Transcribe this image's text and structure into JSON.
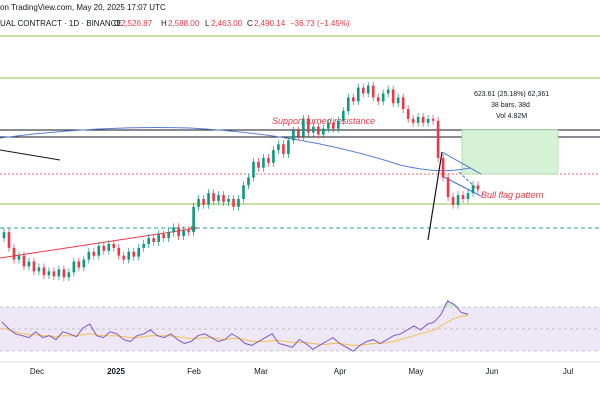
{
  "header": {
    "published_line": "on TradingView.com, May 20, 2025 17:07 UTC",
    "symbol_line": "UAL CONTRACT · 1D · BINANCE",
    "ohlc": {
      "o_label": "O",
      "o_value": "2,526.87",
      "h_label": "H",
      "h_value": "2,588.00",
      "l_label": "L",
      "l_value": "2,463.00",
      "c_label": "C",
      "c_value": "2,490.14",
      "change": "−36.73 (−1.45%)"
    }
  },
  "annotations": {
    "support_resistance": "Support turned resistance",
    "bull_flag": "Bull flag pattern"
  },
  "measure_box": {
    "line1": "623.61 (25.18%) 62,361",
    "line2": "38 bars, 38d",
    "line3": "Vol 4.82M"
  },
  "colors": {
    "up": "#089981",
    "down": "#f23645",
    "ma": "#5b7fd6",
    "rsi": "#7e57c2",
    "rsi_ma": "#f5c04a",
    "rsi_band_fill": "#ede7f6",
    "channel_line": "#8bc34a",
    "teal_dashed": "#26a69a",
    "target_fill": "#d6f2d6",
    "flag_blue": "#3f6fd1"
  },
  "chart_data": [
    {
      "type": "candlestick",
      "series_color_up": "#089981",
      "series_color_down": "#f23645",
      "x_tick_labels": [
        "Dec",
        "2025",
        "Feb",
        "Mar",
        "Apr",
        "May",
        "Jun",
        "Jul"
      ],
      "candles": [
        {
          "o": 118,
          "c": 124
        },
        {
          "o": 124,
          "c": 108
        },
        {
          "o": 108,
          "c": 96
        },
        {
          "o": 96,
          "c": 100
        },
        {
          "o": 100,
          "c": 89
        },
        {
          "o": 89,
          "c": 94
        },
        {
          "o": 94,
          "c": 84
        },
        {
          "o": 84,
          "c": 88
        },
        {
          "o": 88,
          "c": 80
        },
        {
          "o": 80,
          "c": 84
        },
        {
          "o": 84,
          "c": 79
        },
        {
          "o": 79,
          "c": 86
        },
        {
          "o": 86,
          "c": 78
        },
        {
          "o": 78,
          "c": 83
        },
        {
          "o": 83,
          "c": 94
        },
        {
          "o": 94,
          "c": 88
        },
        {
          "o": 88,
          "c": 96
        },
        {
          "o": 96,
          "c": 104
        },
        {
          "o": 104,
          "c": 100
        },
        {
          "o": 100,
          "c": 110
        },
        {
          "o": 110,
          "c": 105
        },
        {
          "o": 105,
          "c": 112
        },
        {
          "o": 112,
          "c": 108
        },
        {
          "o": 108,
          "c": 100
        },
        {
          "o": 100,
          "c": 96
        },
        {
          "o": 96,
          "c": 104
        },
        {
          "o": 104,
          "c": 99
        },
        {
          "o": 99,
          "c": 108
        },
        {
          "o": 108,
          "c": 112
        },
        {
          "o": 112,
          "c": 118
        },
        {
          "o": 118,
          "c": 114
        },
        {
          "o": 114,
          "c": 122
        },
        {
          "o": 122,
          "c": 118
        },
        {
          "o": 118,
          "c": 124
        },
        {
          "o": 124,
          "c": 129
        },
        {
          "o": 129,
          "c": 120
        },
        {
          "o": 120,
          "c": 126
        },
        {
          "o": 126,
          "c": 124
        },
        {
          "o": 124,
          "c": 150
        },
        {
          "o": 150,
          "c": 158
        },
        {
          "o": 158,
          "c": 152
        },
        {
          "o": 152,
          "c": 164
        },
        {
          "o": 164,
          "c": 156
        },
        {
          "o": 156,
          "c": 162
        },
        {
          "o": 162,
          "c": 155
        },
        {
          "o": 155,
          "c": 158
        },
        {
          "o": 158,
          "c": 150
        },
        {
          "o": 150,
          "c": 158
        },
        {
          "o": 158,
          "c": 172
        },
        {
          "o": 172,
          "c": 180
        },
        {
          "o": 180,
          "c": 196
        },
        {
          "o": 196,
          "c": 190
        },
        {
          "o": 190,
          "c": 200
        },
        {
          "o": 200,
          "c": 195
        },
        {
          "o": 195,
          "c": 208
        },
        {
          "o": 208,
          "c": 214
        },
        {
          "o": 214,
          "c": 204
        },
        {
          "o": 204,
          "c": 218
        },
        {
          "o": 218,
          "c": 228
        },
        {
          "o": 228,
          "c": 222
        },
        {
          "o": 222,
          "c": 240
        },
        {
          "o": 240,
          "c": 226
        },
        {
          "o": 226,
          "c": 232
        },
        {
          "o": 232,
          "c": 224
        },
        {
          "o": 224,
          "c": 230
        },
        {
          "o": 230,
          "c": 236
        },
        {
          "o": 236,
          "c": 230
        },
        {
          "o": 230,
          "c": 238
        },
        {
          "o": 238,
          "c": 248
        },
        {
          "o": 248,
          "c": 262
        },
        {
          "o": 262,
          "c": 258
        },
        {
          "o": 258,
          "c": 272
        },
        {
          "o": 272,
          "c": 266
        },
        {
          "o": 266,
          "c": 274
        },
        {
          "o": 274,
          "c": 262
        },
        {
          "o": 262,
          "c": 258
        },
        {
          "o": 258,
          "c": 266
        },
        {
          "o": 266,
          "c": 270
        },
        {
          "o": 270,
          "c": 256
        },
        {
          "o": 256,
          "c": 262
        },
        {
          "o": 262,
          "c": 250
        },
        {
          "o": 250,
          "c": 240
        },
        {
          "o": 240,
          "c": 236
        },
        {
          "o": 236,
          "c": 242
        },
        {
          "o": 242,
          "c": 236
        },
        {
          "o": 236,
          "c": 240
        },
        {
          "o": 240,
          "c": 238
        },
        {
          "o": 238,
          "c": 200
        },
        {
          "o": 200,
          "c": 180
        },
        {
          "o": 180,
          "c": 160
        },
        {
          "o": 160,
          "c": 152
        },
        {
          "o": 152,
          "c": 162
        },
        {
          "o": 162,
          "c": 158
        },
        {
          "o": 158,
          "c": 164
        },
        {
          "o": 164,
          "c": 172
        },
        {
          "o": 172,
          "c": 168
        }
      ],
      "rsi": [
        62,
        55,
        50,
        48,
        46,
        52,
        46,
        48,
        44,
        52,
        50,
        47,
        56,
        60,
        48,
        46,
        52,
        50,
        44,
        42,
        48,
        50,
        54,
        48,
        46,
        50,
        44,
        40,
        42,
        48,
        50,
        46,
        42,
        44,
        50,
        46,
        40,
        38,
        42,
        46,
        50,
        40,
        38,
        36,
        44,
        40,
        34,
        38,
        42,
        46,
        40,
        36,
        32,
        38,
        42,
        44,
        40,
        44,
        48,
        50,
        54,
        58,
        54,
        60,
        62,
        70,
        84,
        80,
        72,
        70
      ],
      "rsi_ma": [
        56,
        54,
        52,
        50,
        49,
        49,
        48,
        48,
        47,
        48,
        48,
        48,
        49,
        50,
        49,
        48,
        48,
        48,
        47,
        46,
        46,
        47,
        48,
        48,
        48,
        48,
        47,
        46,
        45,
        45,
        46,
        46,
        45,
        44,
        45,
        45,
        44,
        42,
        42,
        42,
        43,
        43,
        42,
        41,
        41,
        41,
        40,
        39,
        39,
        40,
        40,
        39,
        38,
        38,
        39,
        40,
        40,
        41,
        42,
        44,
        46,
        48,
        50,
        52,
        54,
        58,
        62,
        66,
        68,
        69
      ]
    }
  ]
}
